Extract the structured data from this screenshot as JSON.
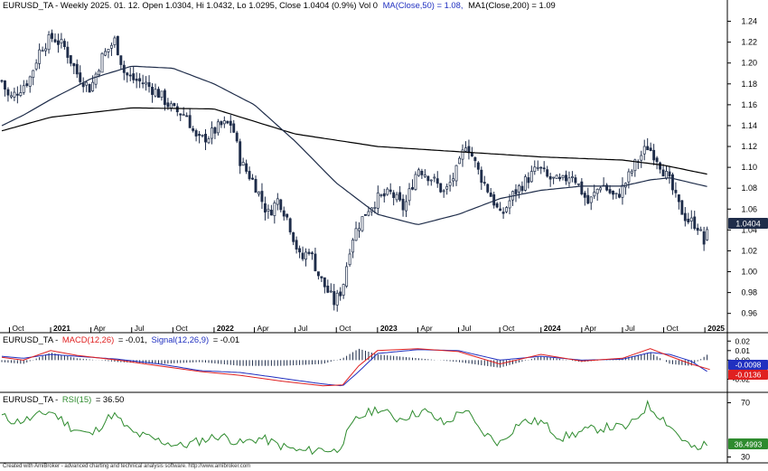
{
  "colors": {
    "background": "#ffffff",
    "candle_up_fill": "#ffffff",
    "candle_down_fill": "#1f2d4a",
    "candle_outline": "#1f2d4a",
    "ma50": "#1f2d4a",
    "ma200": "#000000",
    "macd_line": "#e02020",
    "signal_line": "#2030c0",
    "histogram": "#1f2d4a",
    "rsi_line": "#2e8b2e",
    "price_badge": "#1f2d4a",
    "macd_badge": "#2030c0",
    "signal_badge": "#e02020",
    "rsi_badge": "#2e8b2e",
    "grid": "#cccccc"
  },
  "price_panel": {
    "title_prefix": "EURUSD_TA - Weekly 2025. 01. 12. Open 1.0304, Hi 1.0432, Lo 1.0295, Close 1.0404 (0.9%) Vol 0",
    "ma50_label": "MA(Close,50) = 1.08,",
    "ma200_label": "MA1(Close,200) = 1.09",
    "last_price_badge": "1.0404"
  },
  "macd_panel": {
    "title_prefix": "EURUSD_TA -",
    "macd_label": "MACD(12,26)",
    "macd_value": "= -0.01,",
    "signal_label": "Signal(12,26,9)",
    "signal_value": "= -0.01",
    "macd_badge": "-0.0098",
    "signal_badge": "-0.0136",
    "y_ticks": [
      "0.02",
      "0.01",
      "0.00",
      "-0.02"
    ]
  },
  "rsi_panel": {
    "title_prefix": "EURUSD_TA -",
    "rsi_label": "RSI(15)",
    "rsi_value": "= 36.50",
    "rsi_badge": "36.4993",
    "y_ticks": [
      "70",
      "30"
    ]
  },
  "footer_text": "Created with AmiBroker - advanced charting and technical analysis software. http://www.amibroker.com",
  "chart_data": {
    "type": "candlestick",
    "instrument": "EURUSD_TA",
    "period": "Weekly",
    "last_bar": {
      "date": "2025. 01. 12.",
      "open": 1.0304,
      "high": 1.0432,
      "low": 1.0295,
      "close": 1.0404,
      "change_pct": 0.9,
      "volume": 0
    },
    "ylim": [
      0.945,
      1.25
    ],
    "y_ticks": [
      "0.96",
      "0.98",
      "1.00",
      "1.02",
      "1.04",
      "1.06",
      "1.08",
      "1.10",
      "1.12",
      "1.14",
      "1.16",
      "1.18",
      "1.20",
      "1.22",
      "1.24"
    ],
    "x_range": [
      "2020-09-14",
      "2025-01-31"
    ],
    "x_ticks": [
      {
        "date": "2020-10-01",
        "label": "Oct",
        "bold": false
      },
      {
        "date": "2021-01-01",
        "label": "2021",
        "bold": true
      },
      {
        "date": "2021-04-01",
        "label": "Apr",
        "bold": false
      },
      {
        "date": "2021-07-01",
        "label": "Jul",
        "bold": false
      },
      {
        "date": "2021-10-01",
        "label": "Oct",
        "bold": false
      },
      {
        "date": "2022-01-01",
        "label": "2022",
        "bold": true
      },
      {
        "date": "2022-04-01",
        "label": "Apr",
        "bold": false
      },
      {
        "date": "2022-07-01",
        "label": "Jul",
        "bold": false
      },
      {
        "date": "2022-10-01",
        "label": "Oct",
        "bold": false
      },
      {
        "date": "2023-01-01",
        "label": "2023",
        "bold": true
      },
      {
        "date": "2023-04-01",
        "label": "Apr",
        "bold": false
      },
      {
        "date": "2023-07-01",
        "label": "Jul",
        "bold": false
      },
      {
        "date": "2023-10-01",
        "label": "Oct",
        "bold": false
      },
      {
        "date": "2024-01-01",
        "label": "2024",
        "bold": true
      },
      {
        "date": "2024-04-01",
        "label": "Apr",
        "bold": false
      },
      {
        "date": "2024-07-01",
        "label": "Jul",
        "bold": false
      },
      {
        "date": "2024-10-01",
        "label": "Oct",
        "bold": false
      },
      {
        "date": "2025-01-01",
        "label": "2025",
        "bold": true
      }
    ],
    "close_series": {
      "dates": [
        "2020-09-14",
        "2020-10-01",
        "2020-11-15",
        "2020-12-10",
        "2021-01-06",
        "2021-02-01",
        "2021-03-01",
        "2021-03-31",
        "2021-04-25",
        "2021-05-25",
        "2021-06-15",
        "2021-07-01",
        "2021-08-01",
        "2021-09-01",
        "2021-10-01",
        "2021-11-01",
        "2021-11-24",
        "2021-12-20",
        "2022-01-15",
        "2022-02-10",
        "2022-03-01",
        "2022-04-01",
        "2022-05-01",
        "2022-05-25",
        "2022-06-15",
        "2022-07-14",
        "2022-08-01",
        "2022-08-24",
        "2022-09-27",
        "2022-10-15",
        "2022-11-03",
        "2022-11-20",
        "2022-12-10",
        "2023-01-01",
        "2023-02-01",
        "2023-03-01",
        "2023-04-01",
        "2023-05-01",
        "2023-05-31",
        "2023-07-01",
        "2023-07-18",
        "2023-08-15",
        "2023-09-15",
        "2023-10-03",
        "2023-11-01",
        "2023-12-27",
        "2024-01-15",
        "2024-02-15",
        "2024-03-10",
        "2024-04-16",
        "2024-05-15",
        "2024-06-15",
        "2024-07-01",
        "2024-08-01",
        "2024-08-26",
        "2024-09-15",
        "2024-10-15",
        "2024-11-01",
        "2024-11-22",
        "2024-12-15",
        "2025-01-01",
        "2025-01-12"
      ],
      "values": [
        1.183,
        1.165,
        1.185,
        1.215,
        1.225,
        1.215,
        1.19,
        1.175,
        1.205,
        1.222,
        1.19,
        1.185,
        1.18,
        1.17,
        1.155,
        1.15,
        1.125,
        1.13,
        1.14,
        1.142,
        1.105,
        1.085,
        1.055,
        1.07,
        1.05,
        1.01,
        1.022,
        0.995,
        0.97,
        0.985,
        1.03,
        1.045,
        1.06,
        1.07,
        1.075,
        1.06,
        1.1,
        1.09,
        1.075,
        1.1,
        1.125,
        1.095,
        1.07,
        1.052,
        1.075,
        1.1,
        1.09,
        1.085,
        1.095,
        1.065,
        1.085,
        1.07,
        1.08,
        1.105,
        1.12,
        1.11,
        1.085,
        1.065,
        1.05,
        1.045,
        1.025,
        1.0404
      ]
    },
    "series": [
      {
        "name": "MA(Close,50)",
        "last_value": 1.08,
        "dates": [
          "2020-09-14",
          "2020-11-01",
          "2021-01-01",
          "2021-04-01",
          "2021-07-01",
          "2021-10-01",
          "2022-01-01",
          "2022-04-01",
          "2022-07-01",
          "2022-10-01",
          "2023-01-01",
          "2023-04-01",
          "2023-07-01",
          "2023-10-01",
          "2024-01-01",
          "2024-04-01",
          "2024-07-01",
          "2024-09-01",
          "2024-10-15",
          "2025-01-12"
        ],
        "values": [
          1.14,
          1.15,
          1.165,
          1.185,
          1.197,
          1.195,
          1.18,
          1.16,
          1.125,
          1.085,
          1.055,
          1.045,
          1.055,
          1.07,
          1.078,
          1.082,
          1.082,
          1.088,
          1.09,
          1.081
        ]
      },
      {
        "name": "MA1(Close,200)",
        "last_value": 1.09,
        "dates": [
          "2020-09-14",
          "2021-01-01",
          "2021-07-01",
          "2022-01-01",
          "2022-07-01",
          "2023-01-01",
          "2023-07-01",
          "2024-01-01",
          "2024-07-01",
          "2024-10-01",
          "2025-01-12"
        ],
        "values": [
          1.135,
          1.148,
          1.157,
          1.156,
          1.132,
          1.12,
          1.115,
          1.11,
          1.107,
          1.102,
          1.093
        ]
      },
      {
        "name": "MACD(12,26)",
        "last_value": -0.0098,
        "dates": [
          "2020-09-14",
          "2020-11-01",
          "2021-01-01",
          "2021-03-01",
          "2021-06-01",
          "2021-09-01",
          "2021-12-01",
          "2022-03-01",
          "2022-06-01",
          "2022-09-01",
          "2022-10-15",
          "2022-11-20",
          "2023-01-01",
          "2023-04-01",
          "2023-07-01",
          "2023-10-01",
          "2024-01-01",
          "2024-04-01",
          "2024-07-01",
          "2024-09-01",
          "2024-10-15",
          "2024-12-01",
          "2025-01-12"
        ],
        "values": [
          0.003,
          0.0,
          0.01,
          0.005,
          0.0,
          -0.006,
          -0.012,
          -0.016,
          -0.022,
          -0.027,
          -0.026,
          -0.006,
          0.01,
          0.012,
          0.009,
          -0.004,
          0.006,
          -0.001,
          0.002,
          0.012,
          0.004,
          -0.004,
          -0.0098
        ]
      },
      {
        "name": "Signal(12,26,9)",
        "last_value": -0.0136,
        "dates": [
          "2020-09-14",
          "2020-11-01",
          "2021-01-01",
          "2021-03-01",
          "2021-06-01",
          "2021-09-01",
          "2021-12-01",
          "2022-03-01",
          "2022-06-01",
          "2022-09-01",
          "2022-10-15",
          "2022-11-20",
          "2023-01-01",
          "2023-04-01",
          "2023-07-01",
          "2023-10-01",
          "2024-01-01",
          "2024-04-01",
          "2024-07-01",
          "2024-09-01",
          "2024-10-15",
          "2024-12-01",
          "2025-01-12"
        ],
        "values": [
          0.004,
          0.002,
          0.006,
          0.004,
          0.001,
          -0.004,
          -0.011,
          -0.013,
          -0.019,
          -0.025,
          -0.027,
          -0.012,
          0.007,
          0.011,
          0.01,
          0.0,
          0.004,
          0.0,
          0.001,
          0.008,
          0.006,
          -0.001,
          -0.0136
        ]
      },
      {
        "name": "RSI(15)",
        "last_value": 36.4993,
        "dates": [
          "2020-09-14",
          "2020-10-15",
          "2020-11-15",
          "2021-01-01",
          "2021-02-15",
          "2021-04-01",
          "2021-05-20",
          "2021-07-01",
          "2021-09-01",
          "2021-10-20",
          "2021-12-01",
          "2022-01-15",
          "2022-03-01",
          "2022-04-15",
          "2022-06-01",
          "2022-07-14",
          "2022-09-01",
          "2022-10-01",
          "2022-11-15",
          "2023-01-01",
          "2023-02-15",
          "2023-04-15",
          "2023-06-01",
          "2023-07-15",
          "2023-08-15",
          "2023-10-01",
          "2023-11-15",
          "2024-01-01",
          "2024-02-15",
          "2024-04-15",
          "2024-06-01",
          "2024-07-15",
          "2024-08-26",
          "2024-10-01",
          "2024-11-15",
          "2024-12-15",
          "2025-01-01",
          "2025-01-12"
        ],
        "values": [
          60,
          56,
          58,
          64,
          52,
          46,
          62,
          48,
          42,
          38,
          42,
          46,
          40,
          44,
          38,
          34,
          36,
          34,
          58,
          66,
          58,
          64,
          54,
          66,
          50,
          40,
          56,
          56,
          44,
          50,
          52,
          52,
          68,
          58,
          42,
          34,
          40,
          36.5
        ]
      }
    ],
    "macd_ylim": [
      -0.03,
      0.025
    ],
    "rsi_ylim": [
      27,
      75
    ]
  }
}
